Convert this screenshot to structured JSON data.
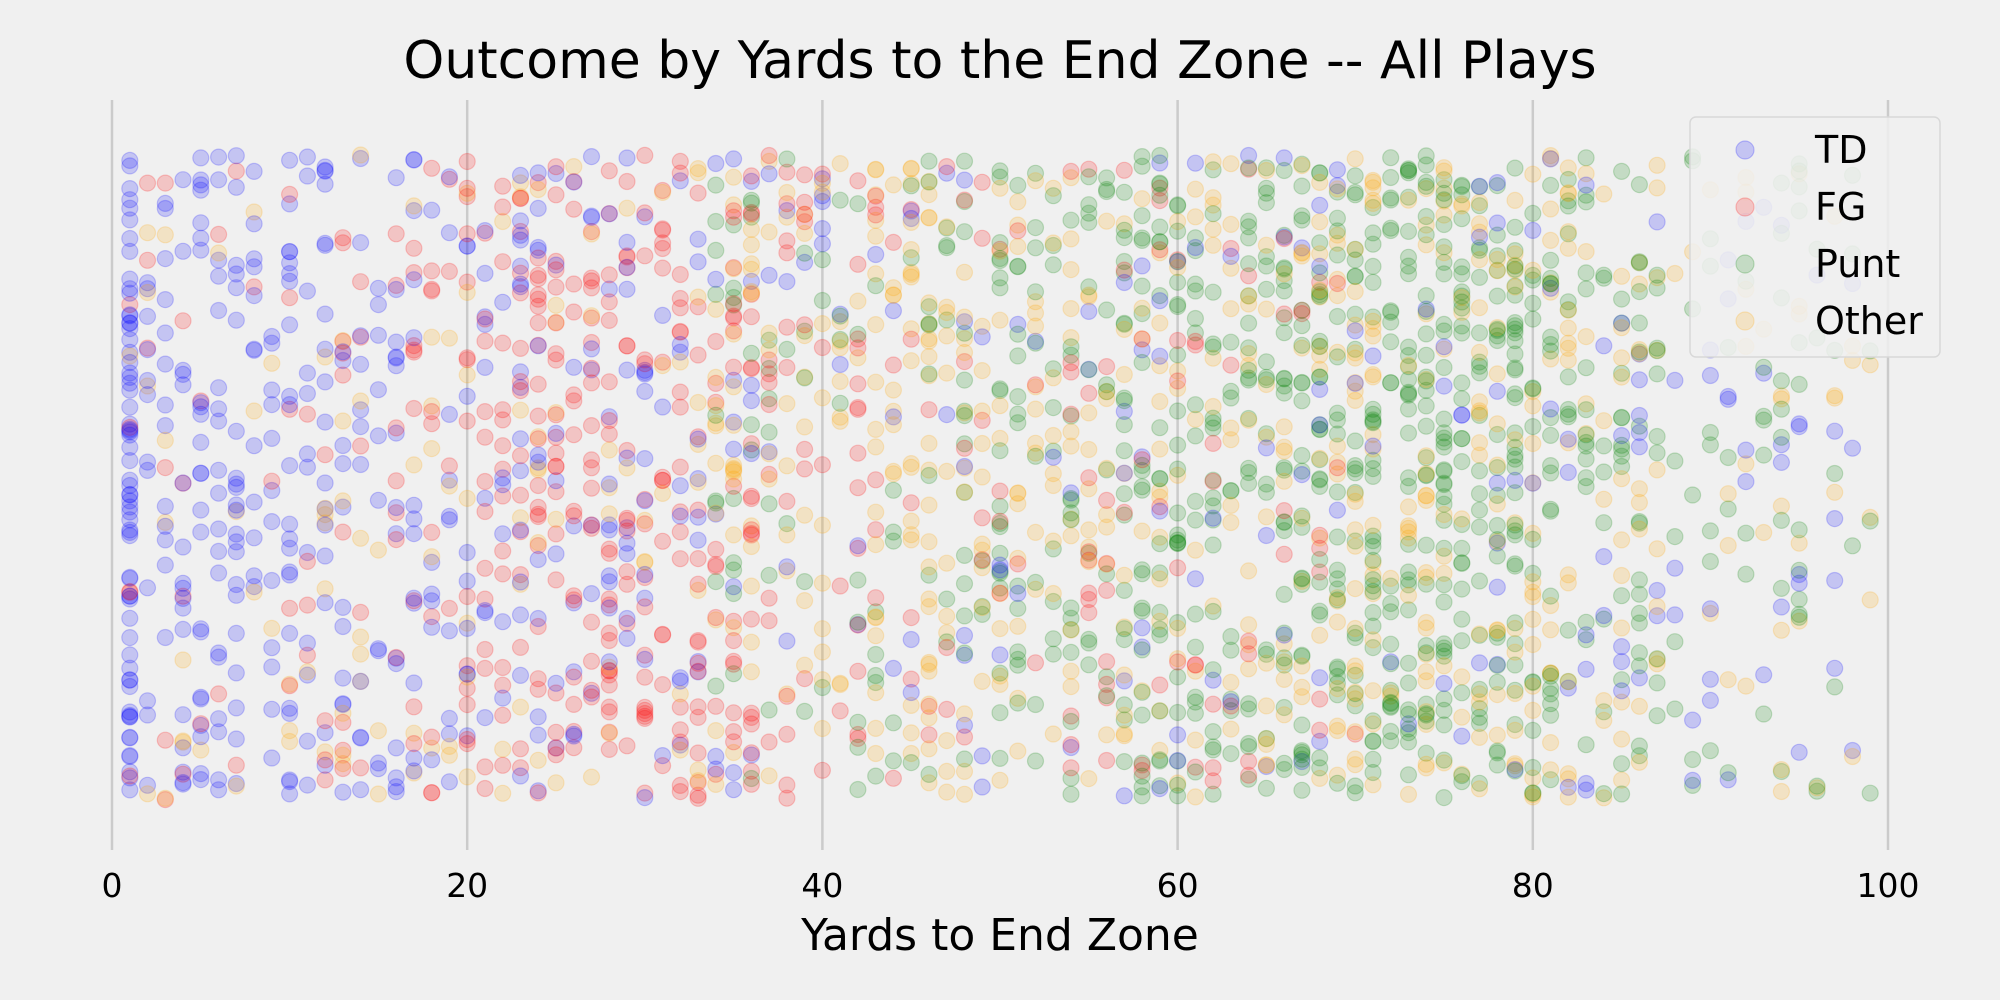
{
  "chart_data": {
    "type": "scatter",
    "title": "Outcome by Yards to the End Zone -- All Plays",
    "xlabel": "Yards to End Zone",
    "ylabel": "",
    "xlim": [
      0,
      100
    ],
    "xticks": [
      0,
      20,
      40,
      60,
      80,
      100
    ],
    "xtick_labels": [
      "0",
      "20",
      "40",
      "60",
      "80",
      "100"
    ],
    "y_axis": "random jitter, no ticks or labels",
    "grid": "vertical gridlines at x ticks",
    "legend_position": "top-right",
    "series": [
      {
        "name": "TD",
        "color": "#0000ff",
        "x_range": [
          1,
          99
        ],
        "density_peaks": [
          1,
          2,
          5,
          10,
          16,
          25,
          30
        ]
      },
      {
        "name": "FG",
        "color": "#ff0000",
        "x_range": [
          1,
          70
        ],
        "density_peaks": [
          18,
          24,
          26,
          30,
          33,
          38
        ]
      },
      {
        "name": "Punt",
        "color": "#008000",
        "x_range": [
          33,
          99
        ],
        "density_peaks": [
          55,
          65,
          70,
          75,
          80
        ]
      },
      {
        "name": "Other",
        "color": "#ffa500",
        "x_range": [
          1,
          99
        ],
        "density_peaks": [
          40,
          50,
          65,
          75,
          80
        ]
      }
    ],
    "marker_alpha": 0.18
  }
}
